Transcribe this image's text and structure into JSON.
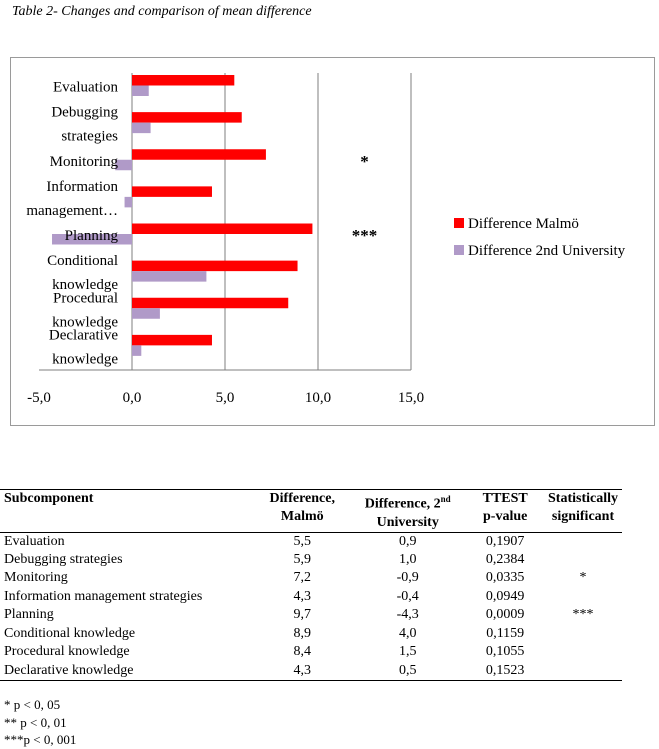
{
  "caption": "Table 2- Changes and comparison of mean difference",
  "chart_data": {
    "type": "bar",
    "orientation": "horizontal",
    "categories": [
      [
        "Evaluation"
      ],
      [
        "Debugging",
        "strategies"
      ],
      [
        "Monitoring"
      ],
      [
        "Information",
        "management…"
      ],
      [
        "Planning"
      ],
      [
        "Conditional",
        "knowledge"
      ],
      [
        "Procedural",
        "knowledge"
      ],
      [
        "Declarative",
        "knowledge"
      ]
    ],
    "series": [
      {
        "name": "Difference Malmö",
        "color": "#ff0000",
        "values": [
          5.5,
          5.9,
          7.2,
          4.3,
          9.7,
          8.9,
          8.4,
          4.3
        ]
      },
      {
        "name": "Difference 2nd University",
        "color": "#b09ac8",
        "values": [
          0.9,
          1.0,
          -0.9,
          -0.4,
          -4.3,
          4.0,
          1.5,
          0.5
        ]
      }
    ],
    "significance": [
      "",
      "",
      "*",
      "",
      "***",
      "",
      "",
      ""
    ],
    "xlim": [
      -5,
      15
    ],
    "xticks": [
      -5,
      0,
      5,
      10,
      15
    ],
    "xtick_labels": [
      "-5,0",
      "0,0",
      "5,0",
      "10,0",
      "15,0"
    ],
    "legend_position": "right",
    "grid": true
  },
  "table": {
    "headers": [
      [
        "Subcomponent"
      ],
      [
        "Difference,",
        "Malmö"
      ],
      [
        "Difference, 2",
        "nd",
        "University"
      ],
      [
        "TTEST",
        "p-value"
      ],
      [
        "Statistically",
        "significant"
      ]
    ],
    "rows": [
      [
        "Evaluation",
        "5,5",
        "0,9",
        "0,1907",
        ""
      ],
      [
        "Debugging strategies",
        "5,9",
        "1,0",
        "0,2384",
        ""
      ],
      [
        "Monitoring",
        "7,2",
        "-0,9",
        "0,0335",
        "*"
      ],
      [
        "Information management strategies",
        "4,3",
        "-0,4",
        "0,0949",
        ""
      ],
      [
        "Planning",
        "9,7",
        "-4,3",
        "0,0009",
        "***"
      ],
      [
        "Conditional knowledge",
        "8,9",
        "4,0",
        "0,1159",
        ""
      ],
      [
        "Procedural knowledge",
        "8,4",
        "1,5",
        "0,1055",
        ""
      ],
      [
        "Declarative knowledge",
        "4,3",
        "0,5",
        "0,1523",
        ""
      ]
    ]
  },
  "notes": [
    "*  p < 0, 05",
    "** p < 0, 01",
    "***p < 0, 001"
  ]
}
